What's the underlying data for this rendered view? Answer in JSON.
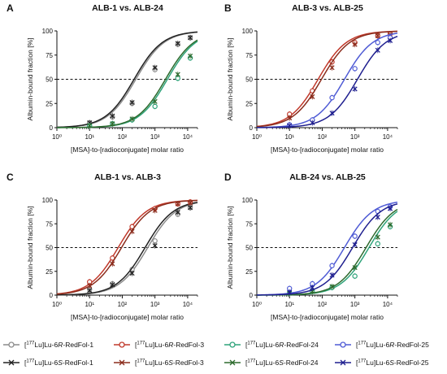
{
  "figure": {
    "panels": [
      {
        "letter": "A",
        "title": "ALB-1 vs. ALB-24"
      },
      {
        "letter": "B",
        "title": "ALB-3 vs. ALB-25"
      },
      {
        "letter": "C",
        "title": "ALB-1 vs. ALB-3"
      },
      {
        "letter": "D",
        "title": "ALB-24 vs. ALB-25"
      }
    ],
    "ylabel": "Albumin-bound fraction [%]",
    "xlabel": "[MSA]-to-[radioconjugate] molar ratio",
    "x_ticks": [
      "10⁰",
      "10¹",
      "10²",
      "10³",
      "10⁴"
    ],
    "y_ticks": [
      "0",
      "25",
      "50",
      "75",
      "100"
    ]
  },
  "legend": [
    {
      "prefix": "[",
      "sup": "177",
      "mid": "Lu]Lu-6",
      "ital": "R",
      "suffix": "-RedFol-1",
      "color": "#8c8c8c",
      "marker": "circle"
    },
    {
      "prefix": "[",
      "sup": "177",
      "mid": "Lu]Lu-6",
      "ital": "R",
      "suffix": "-RedFol-3",
      "color": "#c0392b",
      "marker": "circle"
    },
    {
      "prefix": "[",
      "sup": "177",
      "mid": "Lu]Lu-6",
      "ital": "R",
      "suffix": "-RedFol-24",
      "color": "#2ea37a",
      "marker": "circle"
    },
    {
      "prefix": "[",
      "sup": "177",
      "mid": "Lu]Lu-6",
      "ital": "R",
      "suffix": "-RedFol-25",
      "color": "#4f5bd5",
      "marker": "circle"
    },
    {
      "prefix": "[",
      "sup": "177",
      "mid": "Lu]Lu-6",
      "ital": "S",
      "suffix": "-RedFol-1",
      "color": "#222222",
      "marker": "cross"
    },
    {
      "prefix": "[",
      "sup": "177",
      "mid": "Lu]Lu-6",
      "ital": "S",
      "suffix": "-RedFol-3",
      "color": "#8b2d1d",
      "marker": "cross"
    },
    {
      "prefix": "[",
      "sup": "177",
      "mid": "Lu]Lu-6",
      "ital": "S",
      "suffix": "-RedFol-24",
      "color": "#2e6b2e",
      "marker": "cross"
    },
    {
      "prefix": "[",
      "sup": "177",
      "mid": "Lu]Lu-6",
      "ital": "S",
      "suffix": "-RedFol-25",
      "color": "#1f1f8f",
      "marker": "cross"
    }
  ],
  "chart_data": [
    {
      "type": "scatter",
      "panel": "A",
      "title": "ALB-1 vs. ALB-24",
      "xlabel": "[MSA]-to-[radioconjugate] molar ratio",
      "ylabel": "Albumin-bound fraction [%]",
      "xscale": "log",
      "xlim": [
        1,
        20000
      ],
      "ylim": [
        0,
        100
      ],
      "reference_line_y": 50,
      "series": [
        {
          "name": "[177Lu]Lu-6R-RedFol-1",
          "color": "#8c8c8c",
          "marker": "circle",
          "ec50": 260,
          "x": [
            10,
            50,
            200,
            1000,
            5000,
            12000
          ],
          "y": [
            5,
            11,
            25,
            60,
            86,
            93
          ]
        },
        {
          "name": "[177Lu]Lu-6S-RedFol-1",
          "color": "#222222",
          "marker": "cross",
          "ec50": 230,
          "x": [
            10,
            50,
            200,
            1000,
            5000,
            12000
          ],
          "y": [
            5,
            12,
            26,
            62,
            87,
            93
          ]
        },
        {
          "name": "[177Lu]Lu-6R-RedFol-24",
          "color": "#2ea37a",
          "marker": "circle",
          "ec50": 2400,
          "x": [
            10,
            50,
            200,
            1000,
            5000,
            12000
          ],
          "y": [
            2,
            4,
            8,
            22,
            51,
            72
          ]
        },
        {
          "name": "[177Lu]Lu-6S-RedFol-24",
          "color": "#2e6b2e",
          "marker": "cross",
          "ec50": 2100,
          "x": [
            10,
            50,
            200,
            1000,
            5000,
            12000
          ],
          "y": [
            2,
            4,
            9,
            27,
            55,
            74
          ]
        }
      ]
    },
    {
      "type": "scatter",
      "panel": "B",
      "title": "ALB-3 vs. ALB-25",
      "xlabel": "[MSA]-to-[radioconjugate] molar ratio",
      "ylabel": "Albumin-bound fraction [%]",
      "xscale": "log",
      "xlim": [
        1,
        20000
      ],
      "ylim": [
        0,
        100
      ],
      "reference_line_y": 50,
      "series": [
        {
          "name": "[177Lu]Lu-6R-RedFol-3",
          "color": "#c0392b",
          "marker": "circle",
          "ec50": 75,
          "x": [
            10,
            50,
            200,
            1000,
            5000,
            12000
          ],
          "y": [
            14,
            38,
            68,
            88,
            95,
            97
          ]
        },
        {
          "name": "[177Lu]Lu-6S-RedFol-3",
          "color": "#8b2d1d",
          "marker": "cross",
          "ec50": 95,
          "x": [
            10,
            50,
            200,
            1000,
            5000,
            12000
          ],
          "y": [
            10,
            32,
            62,
            86,
            95,
            96
          ]
        },
        {
          "name": "[177Lu]Lu-6R-RedFol-25",
          "color": "#4f5bd5",
          "marker": "circle",
          "ec50": 480,
          "x": [
            10,
            50,
            200,
            1000,
            5000,
            12000
          ],
          "y": [
            3,
            8,
            31,
            61,
            88,
            93
          ]
        },
        {
          "name": "[177Lu]Lu-6S-RedFol-25",
          "color": "#1f1f8f",
          "marker": "cross",
          "ec50": 1200,
          "x": [
            10,
            50,
            200,
            1000,
            5000,
            12000
          ],
          "y": [
            2,
            5,
            15,
            40,
            80,
            90
          ]
        }
      ]
    },
    {
      "type": "scatter",
      "panel": "C",
      "title": "ALB-1 vs. ALB-3",
      "xlabel": "[MSA]-to-[radioconjugate] molar ratio",
      "ylabel": "Albumin-bound fraction [%]",
      "xscale": "log",
      "xlim": [
        1,
        20000
      ],
      "ylim": [
        0,
        100
      ],
      "reference_line_y": 50,
      "series": [
        {
          "name": "[177Lu]Lu-6R-RedFol-1",
          "color": "#8c8c8c",
          "marker": "circle",
          "ec50": 600,
          "x": [
            10,
            50,
            200,
            1000,
            5000,
            12000
          ],
          "y": [
            6,
            12,
            27,
            57,
            85,
            92
          ]
        },
        {
          "name": "[177Lu]Lu-6S-RedFol-1",
          "color": "#222222",
          "marker": "cross",
          "ec50": 500,
          "x": [
            10,
            50,
            200,
            1000,
            5000,
            12000
          ],
          "y": [
            5,
            11,
            23,
            52,
            87,
            92
          ]
        },
        {
          "name": "[177Lu]Lu-6R-RedFol-3",
          "color": "#c0392b",
          "marker": "circle",
          "ec50": 75,
          "x": [
            10,
            50,
            200,
            1000,
            5000,
            12000
          ],
          "y": [
            14,
            39,
            72,
            91,
            96,
            98
          ]
        },
        {
          "name": "[177Lu]Lu-6S-RedFol-3",
          "color": "#8b2d1d",
          "marker": "cross",
          "ec50": 95,
          "x": [
            10,
            50,
            200,
            1000,
            5000,
            12000
          ],
          "y": [
            10,
            33,
            67,
            89,
            96,
            97
          ]
        }
      ]
    },
    {
      "type": "scatter",
      "panel": "D",
      "title": "ALB-24 vs. ALB-25",
      "xlabel": "[MSA]-to-[radioconjugate] molar ratio",
      "ylabel": "Albumin-bound fraction [%]",
      "xscale": "log",
      "xlim": [
        1,
        20000
      ],
      "ylim": [
        0,
        100
      ],
      "reference_line_y": 50,
      "series": [
        {
          "name": "[177Lu]Lu-6R-RedFol-24",
          "color": "#2ea37a",
          "marker": "circle",
          "ec50": 2700,
          "x": [
            10,
            50,
            200,
            1000,
            5000,
            12000
          ],
          "y": [
            2,
            4,
            8,
            20,
            54,
            72
          ]
        },
        {
          "name": "[177Lu]Lu-6S-RedFol-24",
          "color": "#2e6b2e",
          "marker": "cross",
          "ec50": 2200,
          "x": [
            10,
            50,
            200,
            1000,
            5000,
            12000
          ],
          "y": [
            2,
            4,
            9,
            29,
            61,
            74
          ]
        },
        {
          "name": "[177Lu]Lu-6R-RedFol-25",
          "color": "#4f5bd5",
          "marker": "circle",
          "ec50": 480,
          "x": [
            10,
            50,
            200,
            1000,
            5000,
            12000
          ],
          "y": [
            7,
            12,
            31,
            62,
            88,
            93
          ]
        },
        {
          "name": "[177Lu]Lu-6S-RedFol-25",
          "color": "#1f1f8f",
          "marker": "cross",
          "ec50": 850,
          "x": [
            10,
            50,
            200,
            1000,
            5000,
            12000
          ],
          "y": [
            3,
            8,
            21,
            53,
            82,
            91
          ]
        }
      ]
    }
  ]
}
